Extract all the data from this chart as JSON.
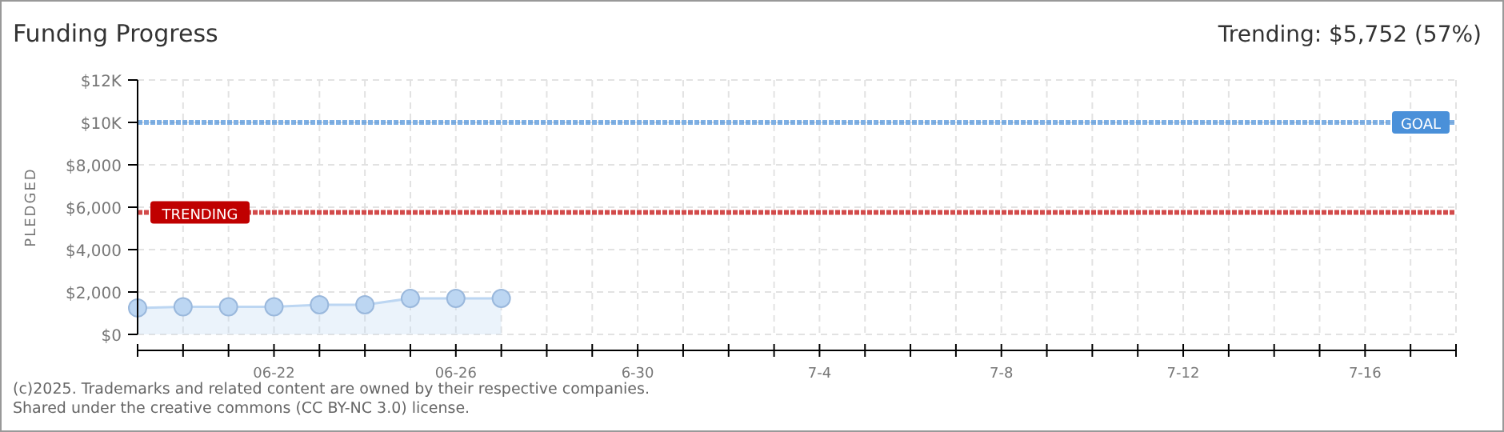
{
  "chart_data": {
    "type": "area",
    "title": "Funding Progress",
    "ylabel": "PLEDGED",
    "annotations": [
      "Trending: $5,752 (57%)",
      "(c)2025. Trademarks and related content are owned by their respective companies.",
      "Shared under the creative commons (CC BY-NC 3.0) license."
    ],
    "x": [
      "2025-06-19",
      "2025-06-20",
      "2025-06-21",
      "2025-06-22",
      "2025-06-23",
      "2025-06-24",
      "2025-06-25",
      "2025-06-26",
      "2025-06-27"
    ],
    "series": [
      {
        "color": "#bcd6f2",
        "values": [
          1250,
          1300,
          1300,
          1300,
          1400,
          1400,
          1700,
          1700,
          1700
        ]
      }
    ],
    "xlim": [
      "2025-06-19",
      "2025-07-18"
    ],
    "xticks": [
      {
        "value": "2025-06-19",
        "label": null
      },
      {
        "value": "2025-06-20",
        "label": null
      },
      {
        "value": "2025-06-21",
        "label": null
      },
      {
        "value": "2025-06-22",
        "label": "06-22"
      },
      {
        "value": "2025-06-23",
        "label": null
      },
      {
        "value": "2025-06-24",
        "label": null
      },
      {
        "value": "2025-06-25",
        "label": null
      },
      {
        "value": "2025-06-26",
        "label": "06-26"
      },
      {
        "value": "2025-06-27",
        "label": null
      },
      {
        "value": "2025-06-28",
        "label": null
      },
      {
        "value": "2025-06-29",
        "label": null
      },
      {
        "value": "2025-06-30",
        "label": "6-30"
      },
      {
        "value": "2025-07-01",
        "label": null
      },
      {
        "value": "2025-07-02",
        "label": null
      },
      {
        "value": "2025-07-03",
        "label": null
      },
      {
        "value": "2025-07-04",
        "label": "7-4"
      },
      {
        "value": "2025-07-05",
        "label": null
      },
      {
        "value": "2025-07-06",
        "label": null
      },
      {
        "value": "2025-07-07",
        "label": null
      },
      {
        "value": "2025-07-08",
        "label": "7-8"
      },
      {
        "value": "2025-07-09",
        "label": null
      },
      {
        "value": "2025-07-10",
        "label": null
      },
      {
        "value": "2025-07-11",
        "label": null
      },
      {
        "value": "2025-07-12",
        "label": "7-12"
      },
      {
        "value": "2025-07-13",
        "label": null
      },
      {
        "value": "2025-07-14",
        "label": null
      },
      {
        "value": "2025-07-15",
        "label": null
      },
      {
        "value": "2025-07-16",
        "label": "7-16"
      },
      {
        "value": "2025-07-17",
        "label": null
      },
      {
        "value": "2025-07-18",
        "label": null
      }
    ],
    "ylim": [
      0,
      12000
    ],
    "yticks": [
      {
        "value": 0,
        "label": "$0"
      },
      {
        "value": 2000,
        "label": "$2,000"
      },
      {
        "value": 4000,
        "label": "$4,000"
      },
      {
        "value": 6000,
        "label": "$6,000"
      },
      {
        "value": 8000,
        "label": "$8,000"
      },
      {
        "value": 10000,
        "label": "$10K"
      },
      {
        "value": 12000,
        "label": "$12K"
      }
    ],
    "ref_lines": [
      {
        "axis": "y",
        "value": 10000,
        "label": "GOAL",
        "color": "#4a90d9",
        "line_style": "dotted"
      },
      {
        "axis": "y",
        "value": 5752,
        "label": "TRENDING",
        "color": "#c00000",
        "line_style": "dotted"
      }
    ],
    "grid": true,
    "marker": "circle"
  }
}
